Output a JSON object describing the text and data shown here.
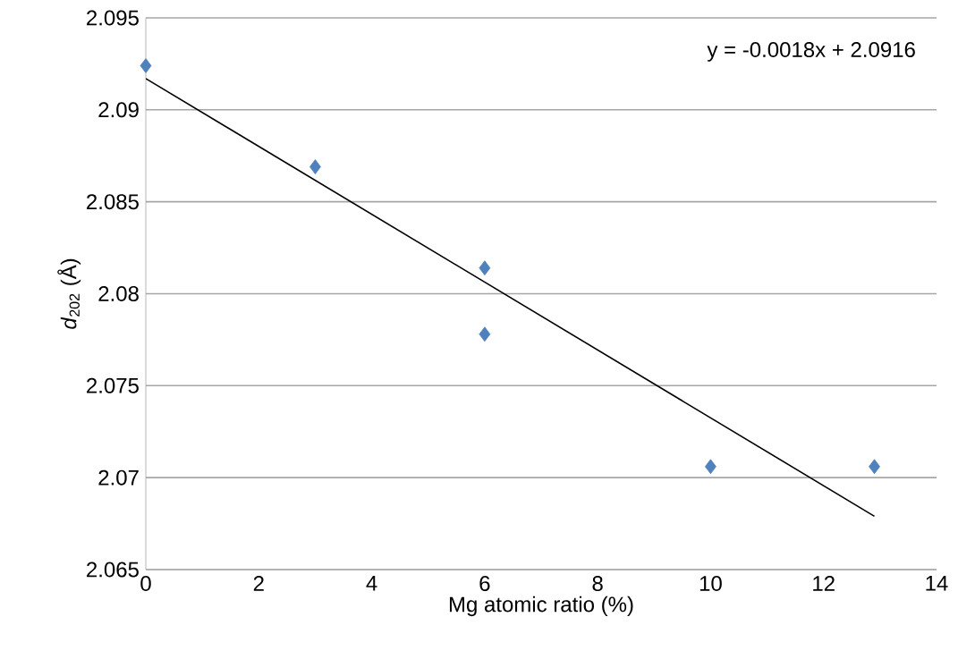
{
  "chart_data": {
    "type": "scatter",
    "xlabel": "Mg atomic ratio (%)",
    "ylabel": "*d*$_{202}$ (Å)",
    "annotations": [
      "y = -0.0018x + 2.0916"
    ],
    "xlim": [
      0,
      14
    ],
    "xticks": [
      0,
      2,
      4,
      6,
      8,
      10,
      12,
      14
    ],
    "ylim": [
      2.065,
      2.095
    ],
    "yticks": [
      2.065,
      2.07,
      2.075,
      2.08,
      2.085,
      2.09,
      2.095
    ],
    "grid": "y",
    "legend": false,
    "marker": "diamond",
    "series": [
      {
        "type": "scatter",
        "color": "#4f81bd",
        "x": [
          0,
          3,
          6,
          6,
          10,
          12.9
        ],
        "values": [
          2.0924,
          2.0869,
          2.0814,
          2.0778,
          2.0706,
          2.0706
        ]
      },
      {
        "type": "line",
        "color": "#000000",
        "marker": "none",
        "line_style": "solid",
        "x": [
          0,
          12.9
        ],
        "values": [
          2.0917,
          2.0679
        ]
      }
    ]
  }
}
